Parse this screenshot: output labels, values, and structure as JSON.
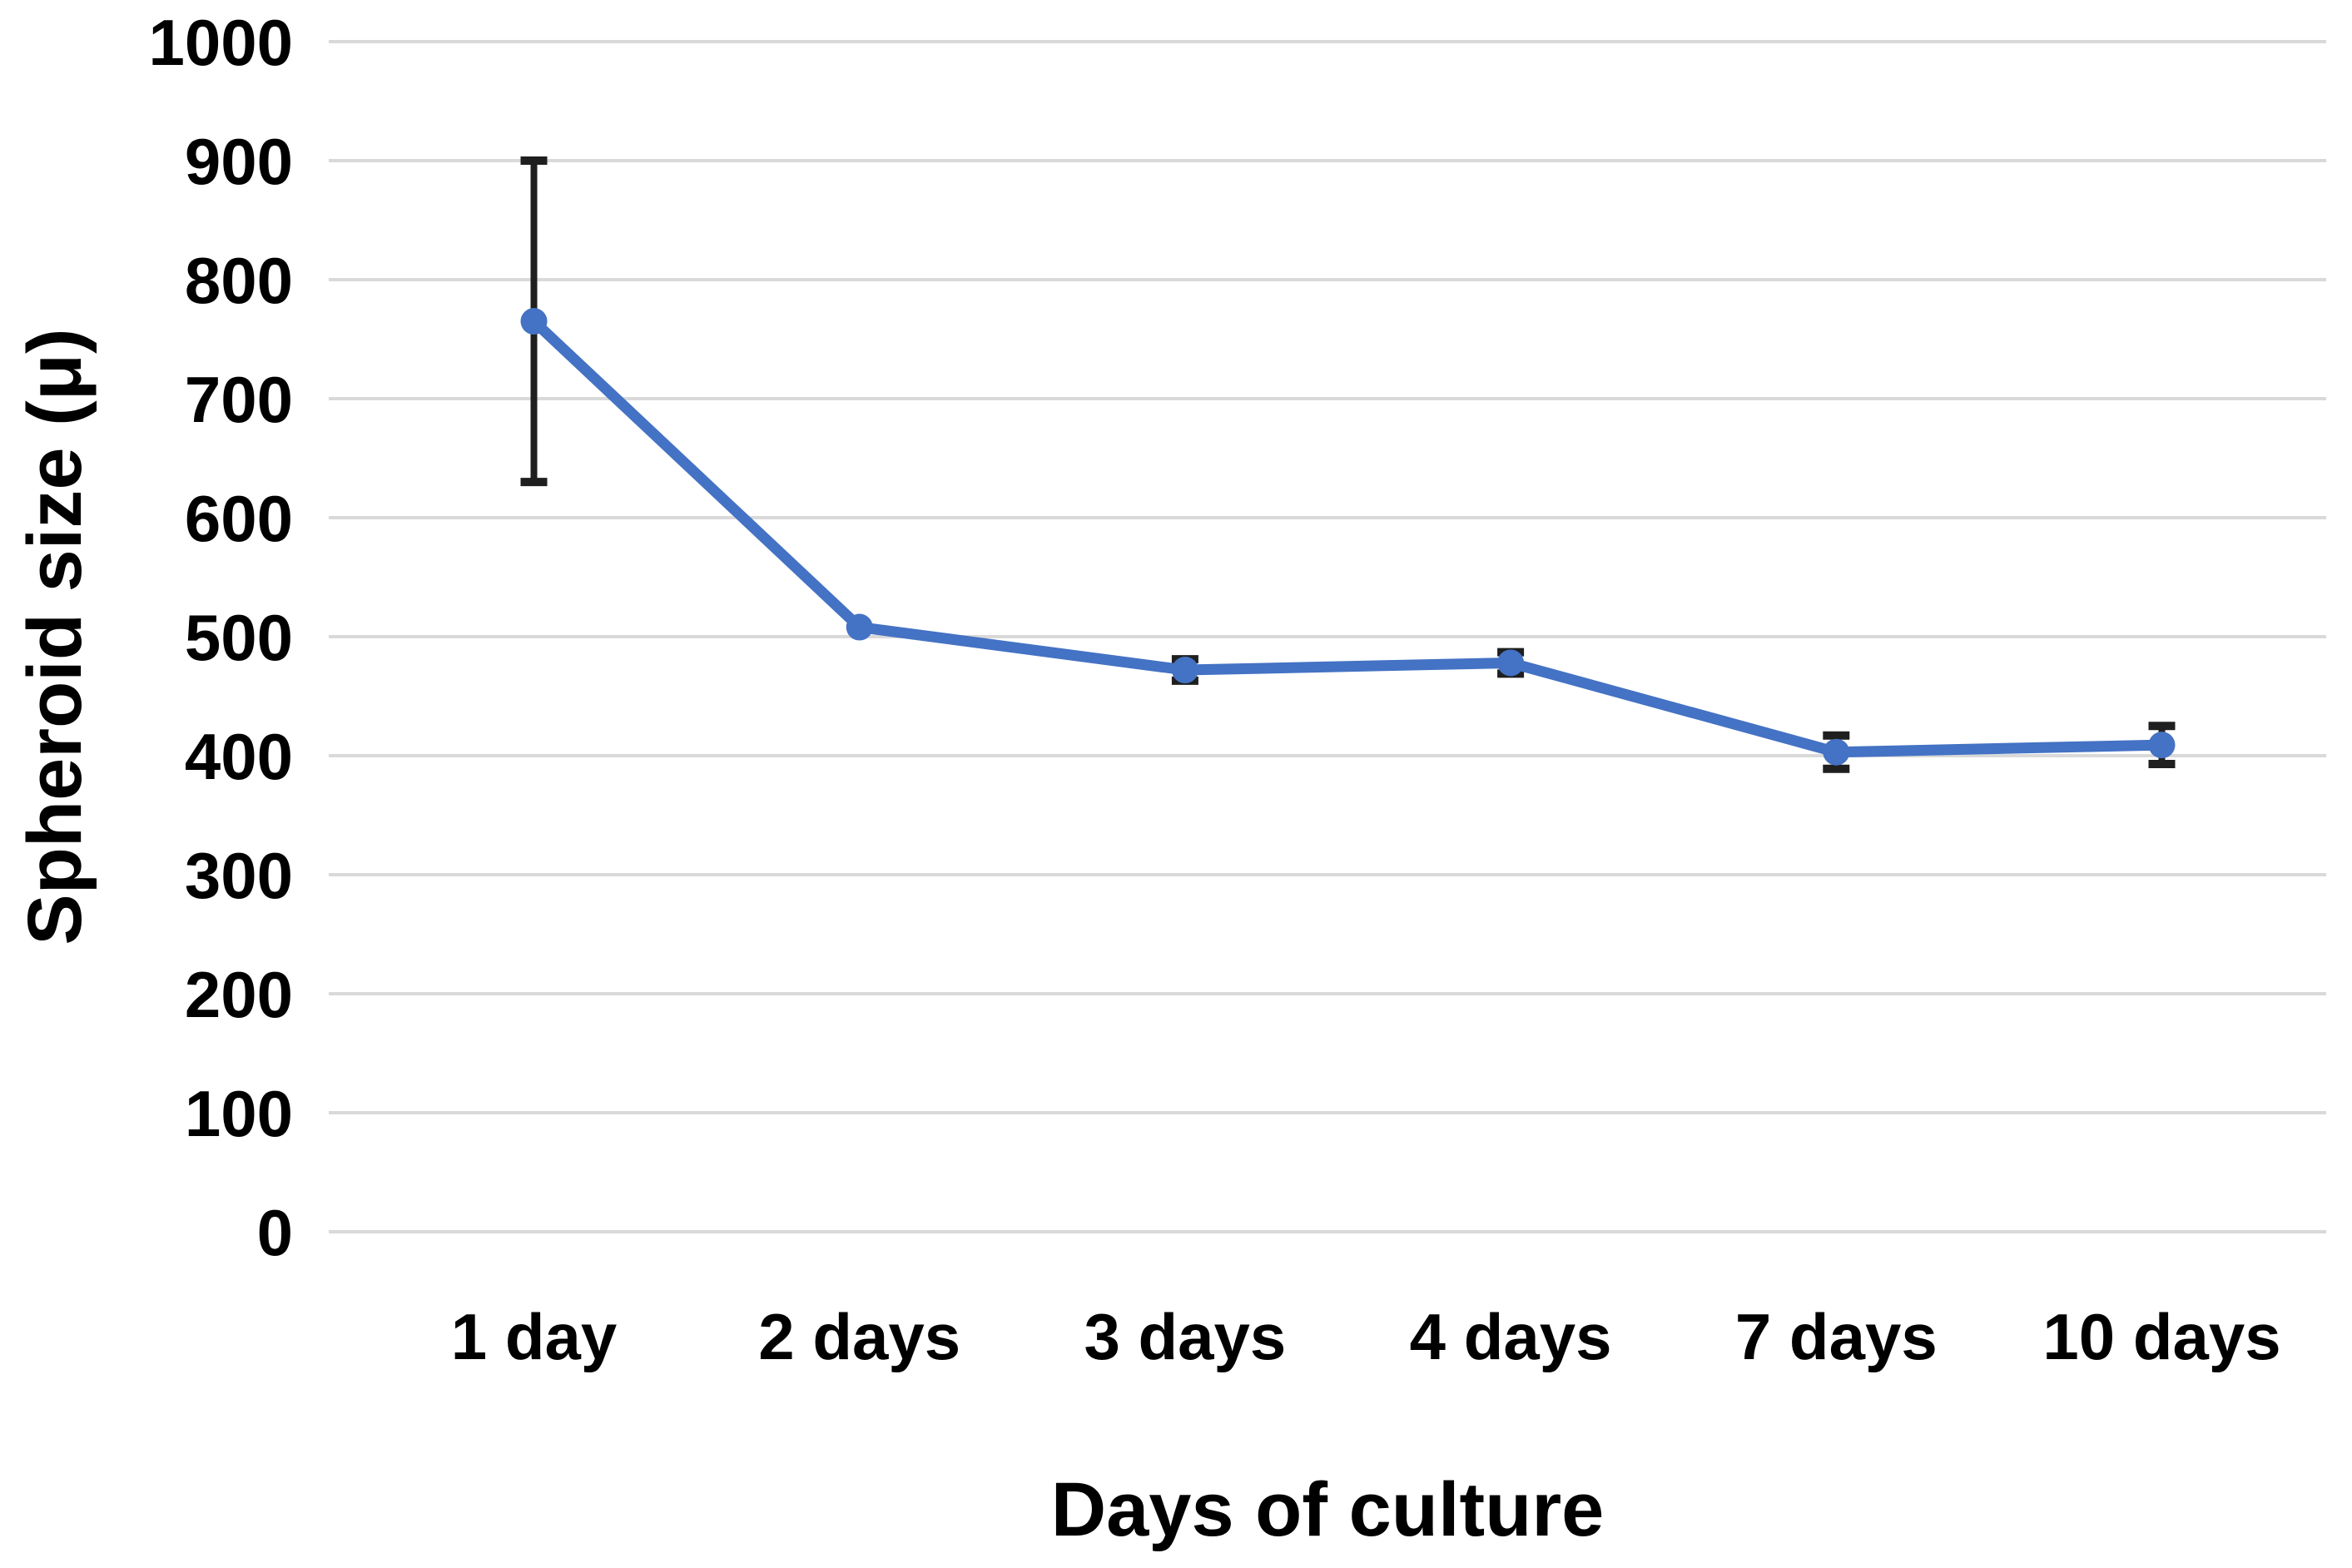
{
  "chart_data": {
    "type": "line",
    "categories": [
      "1 day",
      "2 days",
      "3 days",
      "4 days",
      "7 days",
      "10 days"
    ],
    "series": [
      {
        "values": [
          765,
          508,
          472,
          478,
          403,
          409
        ],
        "error_bars": [
          135,
          0,
          9,
          9,
          14,
          16
        ]
      }
    ],
    "xlabel": "Days of culture",
    "ylabel": "Spheroid size (μ)",
    "ylim": [
      0,
      1000
    ],
    "y_ticks": [
      0,
      100,
      200,
      300,
      400,
      500,
      600,
      700,
      800,
      900,
      1000
    ],
    "grid": "horizontal-only",
    "legend": "none",
    "marker": "circle",
    "colors": {
      "line": "#4472C4",
      "marker": "#4472C4",
      "error_bar": "#1f1f1f",
      "gridline": "#D9D9D9",
      "text": "#000000",
      "background": "#FFFFFF"
    }
  }
}
